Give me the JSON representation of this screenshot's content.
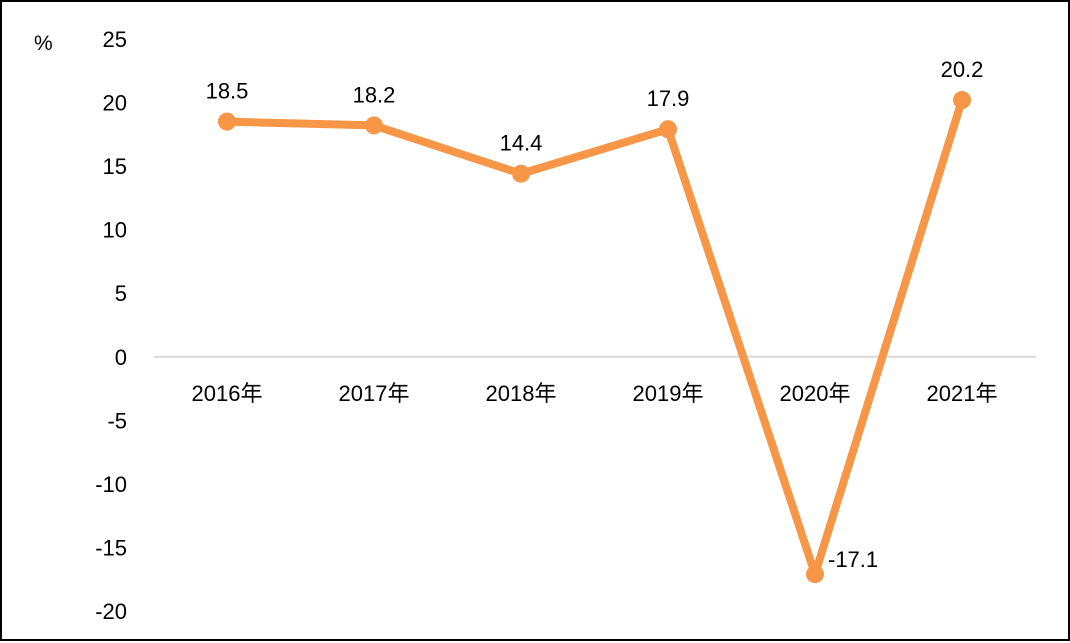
{
  "chart_data": {
    "type": "line",
    "title": "",
    "xlabel": "",
    "ylabel": "%",
    "ylim": [
      -20,
      25
    ],
    "yticks": [
      25,
      20,
      15,
      10,
      5,
      0,
      -5,
      -10,
      -15,
      -20
    ],
    "categories": [
      "2016年",
      "2017年",
      "2018年",
      "2019年",
      "2020年",
      "2021年"
    ],
    "series": [
      {
        "values": [
          18.5,
          18.2,
          14.4,
          17.9,
          -17.1,
          20.2
        ],
        "labels": [
          "18.5",
          "18.2",
          "14.4",
          "17.9",
          "-17.1",
          "20.2"
        ],
        "color": "#F79646"
      }
    ],
    "zero_line_color": "#D9D9D9",
    "grid": false,
    "legend": "none"
  }
}
